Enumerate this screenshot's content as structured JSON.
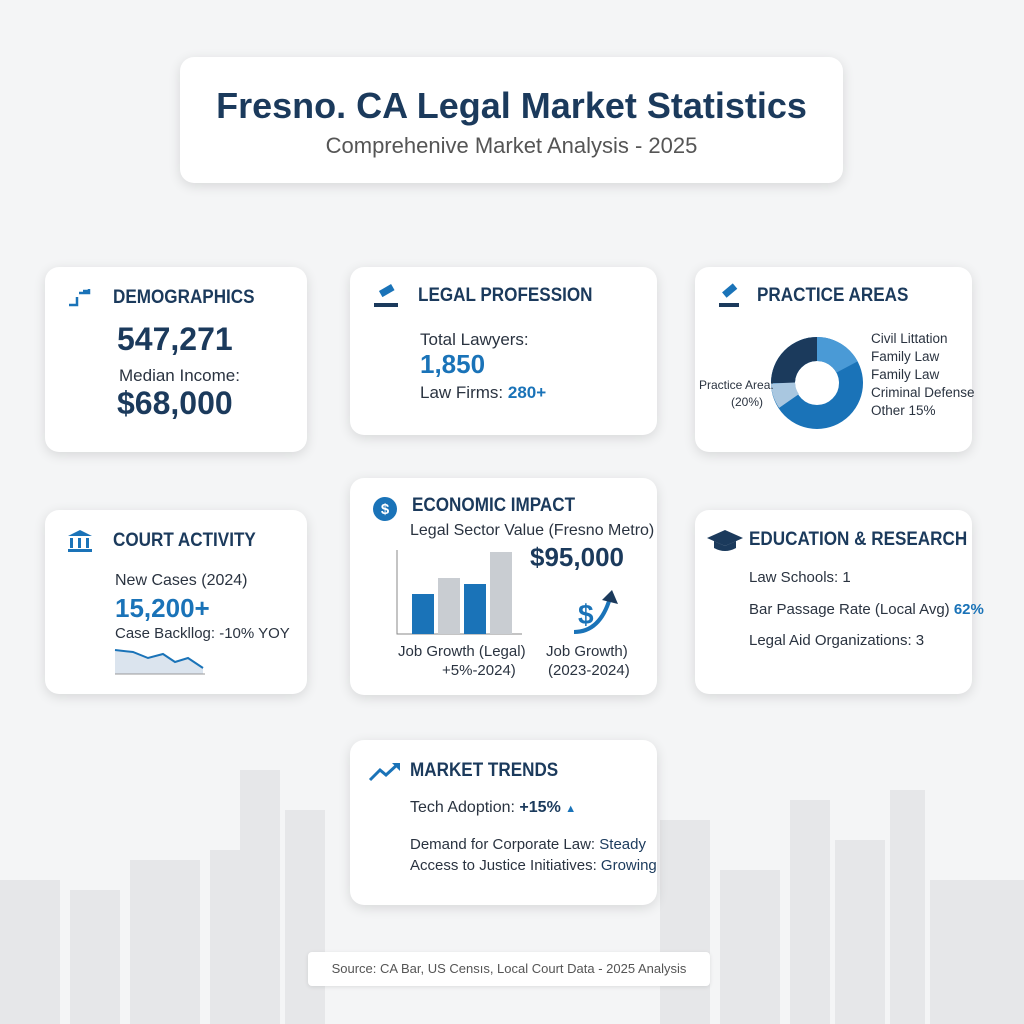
{
  "header": {
    "title": "Fresno. CA Legal Market Statistics",
    "subtitle": "Comprehenive Market Analysis - 2025"
  },
  "cards": {
    "demographics": {
      "title": "DEMOGRAPHICS",
      "population": "547,271",
      "income_label": "Median Income:",
      "income": "$68,000"
    },
    "legal_profession": {
      "title": "LEGAL PROFESSION",
      "lawyers_label": "Total Lawyers:",
      "lawyers": "1,850",
      "firms_label": "Law Firms:",
      "firms": "280+"
    },
    "practice_areas": {
      "title": "PRACTICE AREAS",
      "legend": [
        "Civil Littation",
        "Family Law",
        "Family Law",
        "Criminal Defense",
        "Other 15%"
      ],
      "side_label": "Practice Area:",
      "side_value": "(20%)"
    },
    "court_activity": {
      "title": "COURT ACTIVITY",
      "cases_label": "New Cases (2024)",
      "cases": "15,200+",
      "backlog": "Case Backllog: -10% YOY"
    },
    "economic_impact": {
      "title": "ECONOMIC IMPACT",
      "value_label": "Legal Sector Value (Fresno Metro)",
      "value": "$95,000",
      "growth_left": [
        "Job Growth (Legal)",
        "+5%-2024)"
      ],
      "growth_right": [
        "Job Growth)",
        "(2023-2024)"
      ]
    },
    "education": {
      "title": "EDUCATION & RESEARCH",
      "law_schools": "Law Schools: 1",
      "bar_label": "Bar Passage Rate (Local Avg)",
      "bar_value": "62%",
      "legal_aid": "Legal Aid Organizations: 3"
    },
    "market_trends": {
      "title": "MARKET TRENDS",
      "tech_label": "Tech Adoption:",
      "tech_value": "+15%",
      "corporate_label": "Demand for Corporate Law:",
      "corporate_value": "Steady",
      "access_label": "Access to Justice Initiatives:",
      "access_value": "Growing"
    }
  },
  "footer": {
    "source": "Source: CA Bar, US Censıs, Local Court Data - 2025 Analysis"
  }
}
